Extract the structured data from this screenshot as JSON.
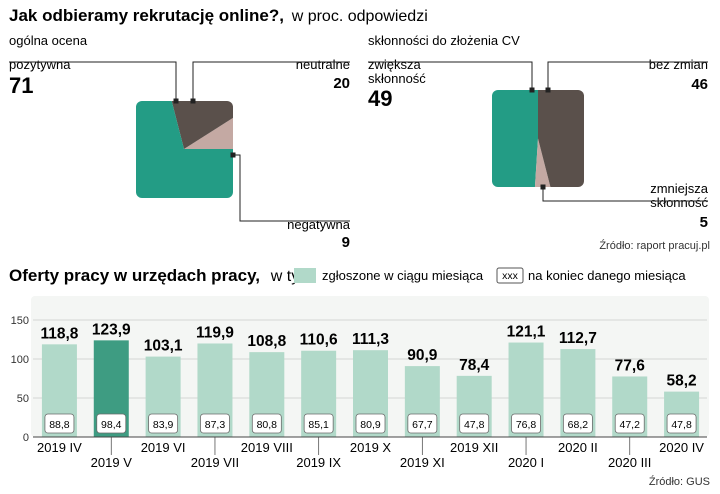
{
  "colors": {
    "teal": "#239c85",
    "dark": "#5a504b",
    "pink": "#c4a9a3",
    "bar": "#b1d9c9",
    "bar_highlight": "#3e9c82",
    "line": "#222222"
  },
  "chart_data": [
    {
      "type": "pie",
      "title": "Jak odbieramy rekrutację online?,",
      "subtitle": "w proc. odpowiedzi",
      "section": "ogólna ocena",
      "slices": [
        {
          "key": "pos",
          "label": "pozytywna",
          "value": 71,
          "display": "71",
          "color": "teal"
        },
        {
          "key": "neu",
          "label": "neutralne",
          "value": 20,
          "display": "20",
          "color": "dark"
        },
        {
          "key": "neg",
          "label": "negatywna",
          "value": 9,
          "display": "9",
          "color": "pink"
        }
      ]
    },
    {
      "type": "pie",
      "section": "skłonności do złożenia CV",
      "slices": [
        {
          "key": "inc",
          "label": [
            "zwiększa",
            "skłonność"
          ],
          "value": 49,
          "display": "49",
          "color": "teal"
        },
        {
          "key": "dec",
          "label": [
            "zmniejsza",
            "skłonność"
          ],
          "value": 5,
          "display": "5",
          "color": "pink"
        },
        {
          "key": "same",
          "label": "bez zmian",
          "value": 46,
          "display": "46",
          "color": "dark"
        }
      ],
      "source": "Źródło: raport pracuj.pl"
    },
    {
      "type": "bar",
      "title": "Oferty pracy w urzędach pracy,",
      "title_unit": "w tys.",
      "legend": {
        "bars": "zgłoszone w ciągu miesiąca",
        "box_sample": "xxx",
        "box": "na koniec danego miesiąca"
      },
      "categories": [
        "2019 IV",
        "2019 V",
        "2019 VI",
        "2019 VII",
        "2019 VIII",
        "2019 IX",
        "2019 X",
        "2019 XI",
        "2019 XII",
        "2020 I",
        "2020 II",
        "2020 III",
        "2020 IV"
      ],
      "series": [
        {
          "name": "zgłoszone w ciągu miesiąca",
          "values": [
            118.8,
            123.9,
            103.1,
            119.9,
            108.8,
            110.6,
            111.3,
            90.9,
            78.4,
            121.1,
            112.7,
            77.6,
            58.2
          ],
          "labels": [
            "118,8",
            "123,9",
            "103,1",
            "119,9",
            "108,8",
            "110,6",
            "111,3",
            "90,9",
            "78,4",
            "121,1",
            "112,7",
            "77,6",
            "58,2"
          ]
        },
        {
          "name": "na koniec danego miesiąca",
          "values": [
            88.8,
            98.4,
            83.9,
            87.3,
            80.8,
            85.1,
            80.9,
            67.7,
            47.8,
            76.8,
            68.2,
            47.2,
            47.8
          ],
          "labels": [
            "88,8",
            "98,4",
            "83,9",
            "87,3",
            "80,8",
            "85,1",
            "80,9",
            "67,7",
            "47,8",
            "76,8",
            "68,2",
            "47,2",
            "47,8"
          ]
        }
      ],
      "highlight_index": 1,
      "ylim": [
        0,
        150
      ],
      "yticks": [
        "0",
        "50",
        "100",
        "150"
      ],
      "grid": true,
      "source": "Źródło: GUS"
    }
  ]
}
